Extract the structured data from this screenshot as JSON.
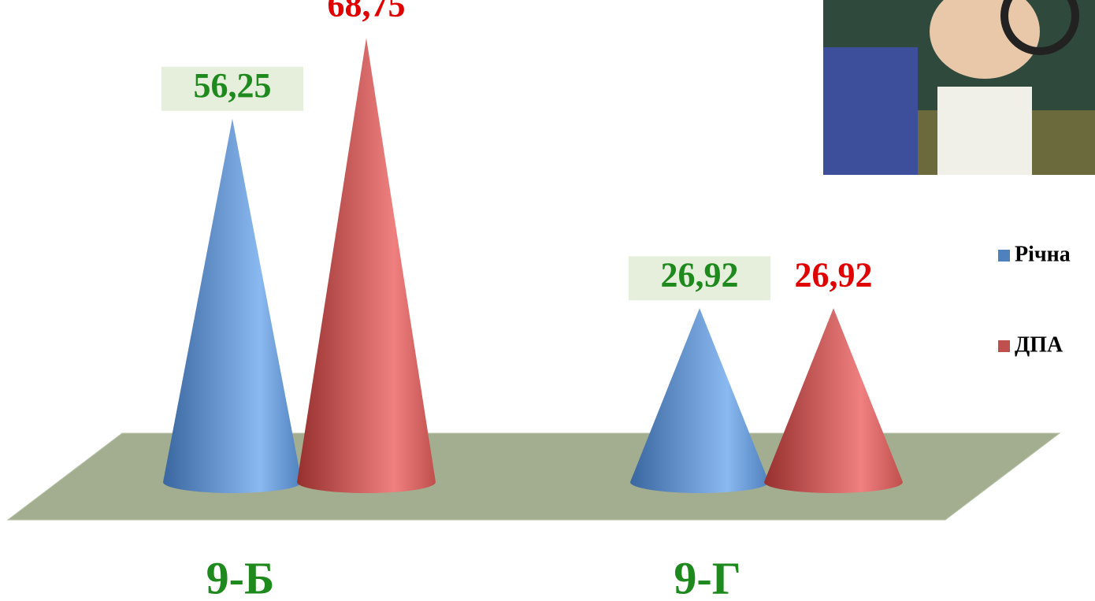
{
  "chart_data": {
    "type": "cone",
    "categories": [
      "9-Б",
      "9-Г"
    ],
    "series": [
      {
        "name": "Річна",
        "color": "#4f81bd",
        "label_color": "#1e8a1e",
        "values": [
          56.25,
          26.92
        ],
        "value_labels": [
          "56,25",
          "26,92"
        ]
      },
      {
        "name": "ДПА",
        "color": "#c0504d",
        "label_color": "#e00000",
        "values": [
          68.75,
          26.92
        ],
        "value_labels": [
          "68,75",
          "26,92"
        ]
      }
    ],
    "legend": "right"
  }
}
